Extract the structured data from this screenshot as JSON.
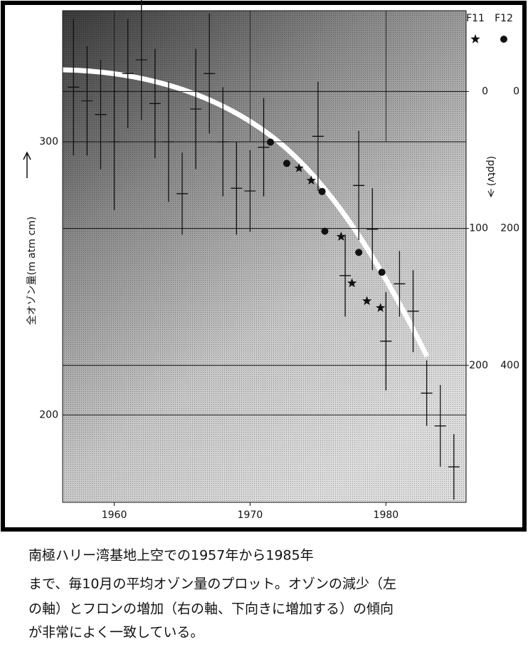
{
  "chart_data": {
    "type": "scatter",
    "xlim": [
      1956.2,
      1985.9
    ],
    "xticks": [
      1960,
      1970,
      1980
    ],
    "ylim": [
      168,
      348
    ],
    "yticks": [
      200,
      300
    ],
    "ylabel": "全オゾン量(m atm cm)",
    "y2lim": [
      -59,
      300
    ],
    "y2ticks": [
      0,
      100,
      200
    ],
    "y3lim": [
      -118,
      600
    ],
    "y3ticks": [
      0,
      200,
      400
    ],
    "y2_inverted": true,
    "y2label": "(pptv)",
    "ozone": {
      "x": [
        1957,
        1958,
        1959,
        1960,
        1961,
        1962,
        1963,
        1964,
        1965,
        1966,
        1967,
        1968,
        1969,
        1970,
        1971,
        1975,
        1977,
        1978,
        1979,
        1980,
        1981,
        1982,
        1983,
        1984,
        1985
      ],
      "values": [
        320,
        315,
        310,
        300,
        325,
        330,
        314,
        300,
        281,
        312,
        325,
        300,
        283,
        282,
        298,
        302,
        251,
        284,
        268,
        227,
        248,
        238,
        208,
        196,
        181
      ],
      "errors": [
        25,
        20,
        20,
        25,
        20,
        22,
        20,
        22,
        15,
        22,
        22,
        20,
        17,
        15,
        18,
        20,
        15,
        20,
        15,
        18,
        12,
        15,
        12,
        15,
        12
      ]
    },
    "series": [
      {
        "name": "F11",
        "marker": "star",
        "axis": "y2",
        "color": "#111111",
        "x": [
          1973.6,
          1974.5,
          1976.7,
          1977.5,
          1978.6,
          1979.6
        ],
        "values": [
          56,
          65,
          106,
          140,
          153,
          158
        ]
      },
      {
        "name": "F12",
        "marker": "dot",
        "axis": "y3",
        "color": "#111111",
        "x": [
          1971.5,
          1972.7,
          1975.3,
          1975.5,
          1978.0,
          1979.7
        ],
        "values": [
          74,
          105,
          146,
          204,
          235,
          264
        ]
      }
    ]
  },
  "caption": [
    "南極ハリー湾基地上空での1957年から1985年",
    "まで、毎10月の平均オゾン量のプロット。オゾンの減少（左",
    "の軸）とフロンの増加（右の軸、下向きに増加する）の傾向",
    "が非常によく一致している。"
  ]
}
